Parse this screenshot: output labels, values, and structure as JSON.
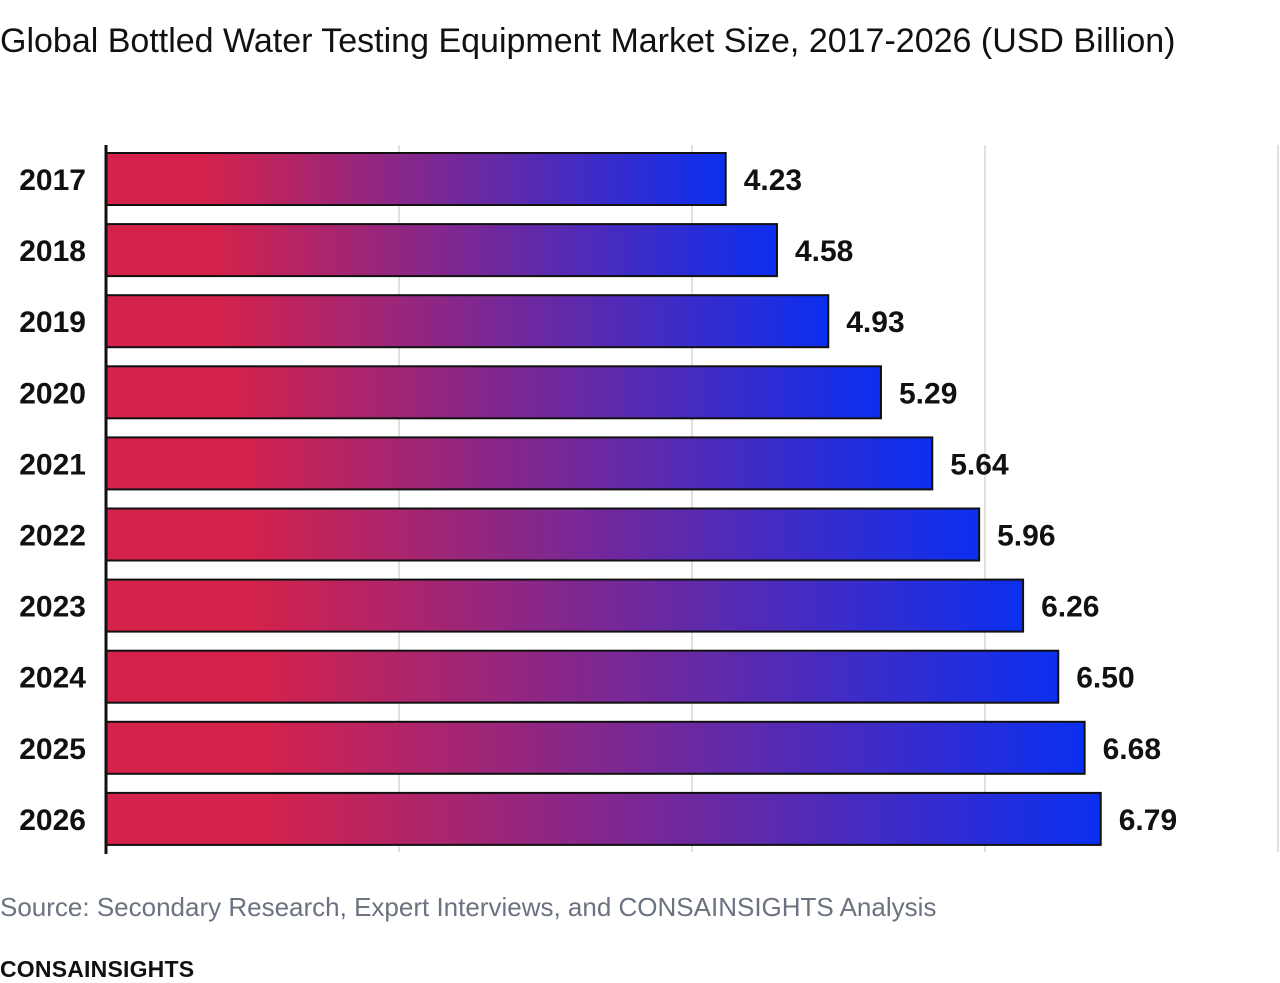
{
  "chart_data": {
    "type": "bar",
    "orientation": "horizontal",
    "title": "Global Bottled Water Testing Equipment Market Size, 2017-2026 (USD Billion)",
    "categories": [
      "2017",
      "2018",
      "2019",
      "2020",
      "2021",
      "2022",
      "2023",
      "2024",
      "2025",
      "2026"
    ],
    "values": [
      4.23,
      4.58,
      4.93,
      5.29,
      5.64,
      5.96,
      6.26,
      6.5,
      6.68,
      6.79
    ],
    "value_labels": [
      "4.23",
      "4.58",
      "4.93",
      "5.29",
      "5.64",
      "5.96",
      "6.26",
      "6.50",
      "6.68",
      "6.79"
    ],
    "xlim": [
      0,
      8
    ],
    "grid": true,
    "bar_gradient": [
      "#d4224b",
      "#0b2ff0"
    ]
  },
  "footer": {
    "source": "Source: Secondary Research, Expert Interviews, and CONSAINSIGHTS Analysis",
    "brand": "CONSAINSIGHTS"
  }
}
